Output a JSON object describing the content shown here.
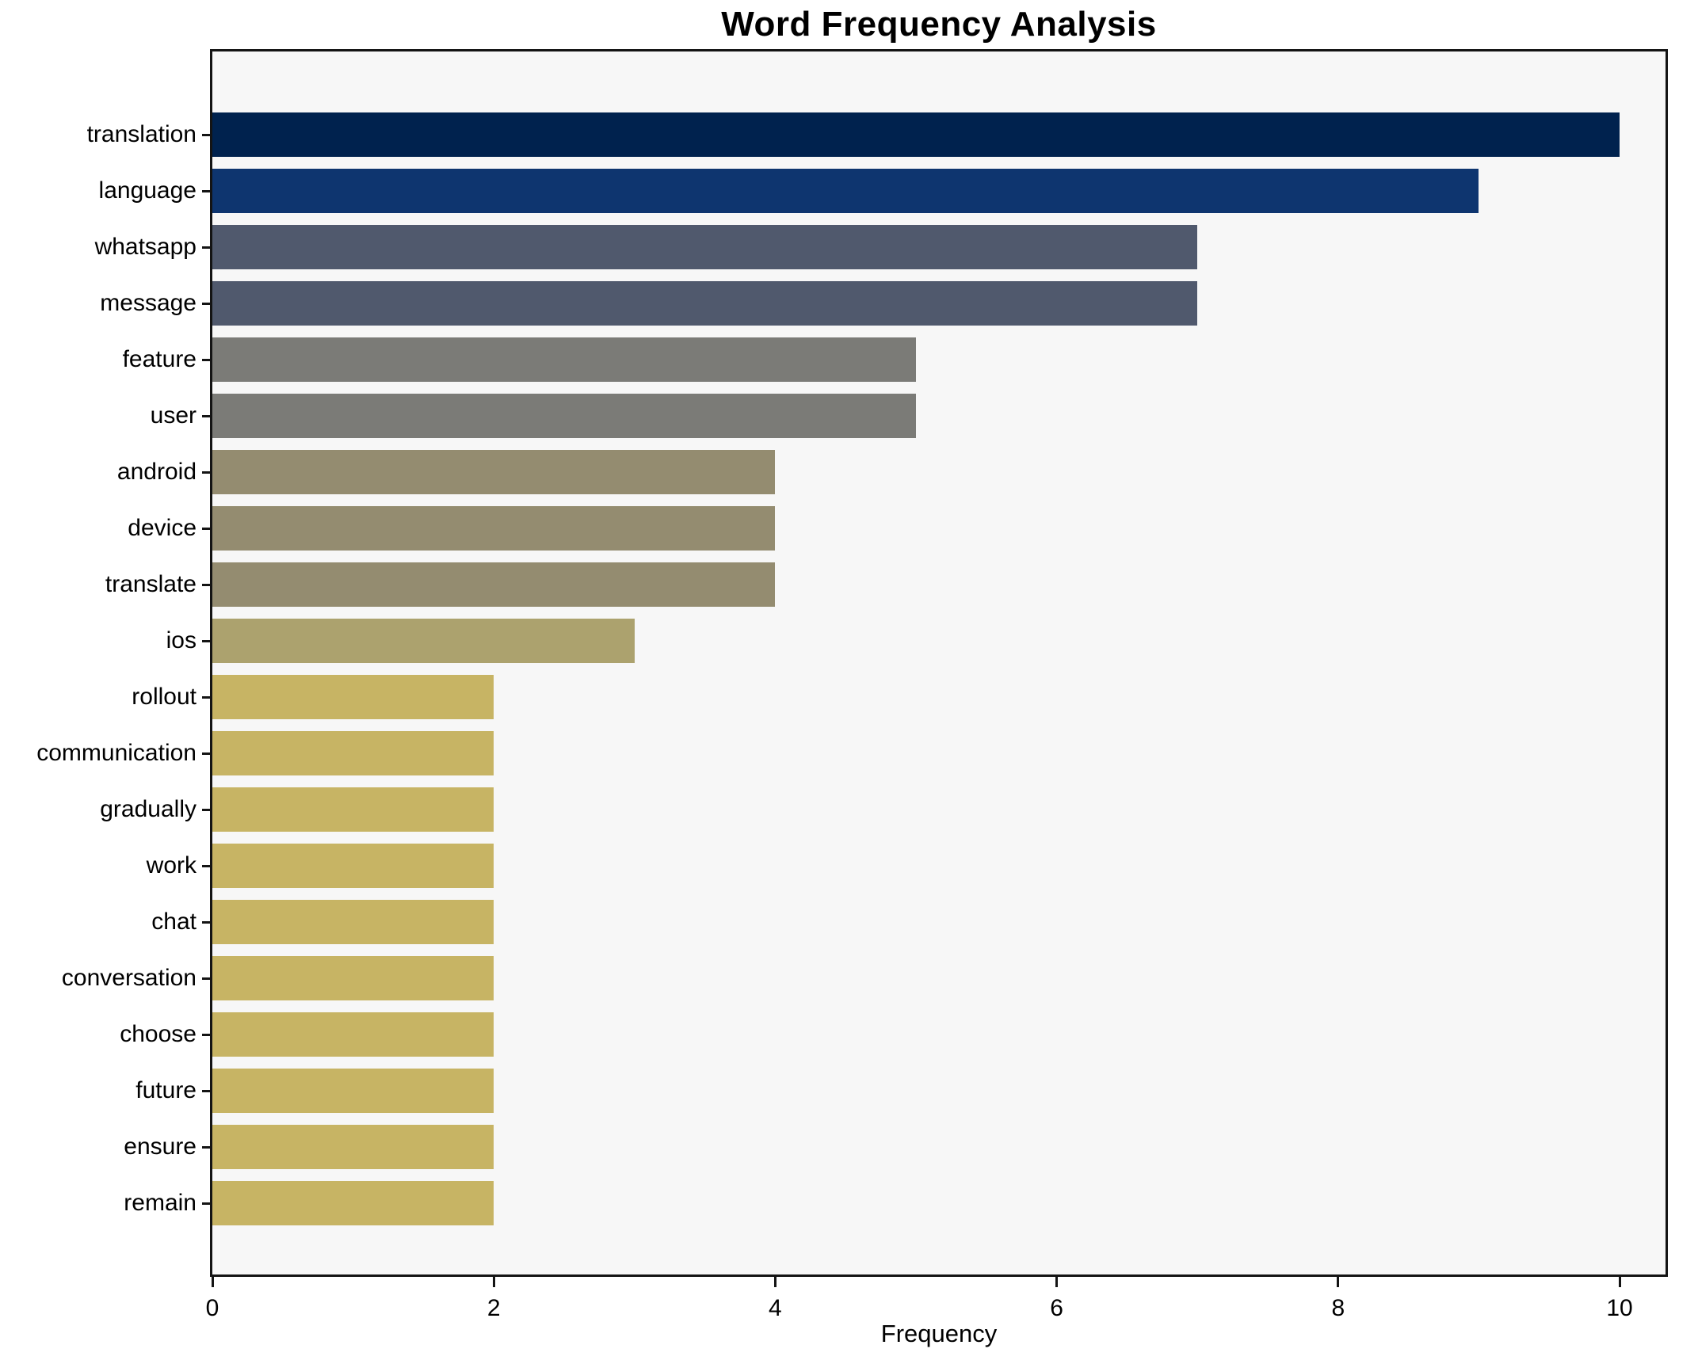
{
  "figure": {
    "background": "#ffffff",
    "plot_background": "#f7f7f7",
    "axis_color": "#141414"
  },
  "chart_data": {
    "type": "bar",
    "orientation": "horizontal",
    "title": "Word Frequency Analysis",
    "xlabel": "Frequency",
    "ylabel": "",
    "grid": false,
    "legend_position": "none",
    "xlim": [
      0,
      10.33
    ],
    "xticks": [
      0,
      2,
      4,
      6,
      8,
      10
    ],
    "categories": [
      "translation",
      "language",
      "whatsapp",
      "message",
      "feature",
      "user",
      "android",
      "device",
      "translate",
      "ios",
      "rollout",
      "communication",
      "gradually",
      "work",
      "chat",
      "conversation",
      "choose",
      "future",
      "ensure",
      "remain"
    ],
    "values": [
      10,
      9,
      7,
      7,
      5,
      5,
      4,
      4,
      4,
      3,
      2,
      2,
      2,
      2,
      2,
      2,
      2,
      2,
      2,
      2
    ],
    "bar_colors": [
      "#00224e",
      "#0e356f",
      "#50596d",
      "#50596d",
      "#7b7b77",
      "#7b7b77",
      "#948c70",
      "#948c70",
      "#948c70",
      "#aca26e",
      "#c7b464",
      "#c7b464",
      "#c7b464",
      "#c7b464",
      "#c7b464",
      "#c7b464",
      "#c7b464",
      "#c7b464",
      "#c7b464",
      "#c7b464"
    ]
  }
}
